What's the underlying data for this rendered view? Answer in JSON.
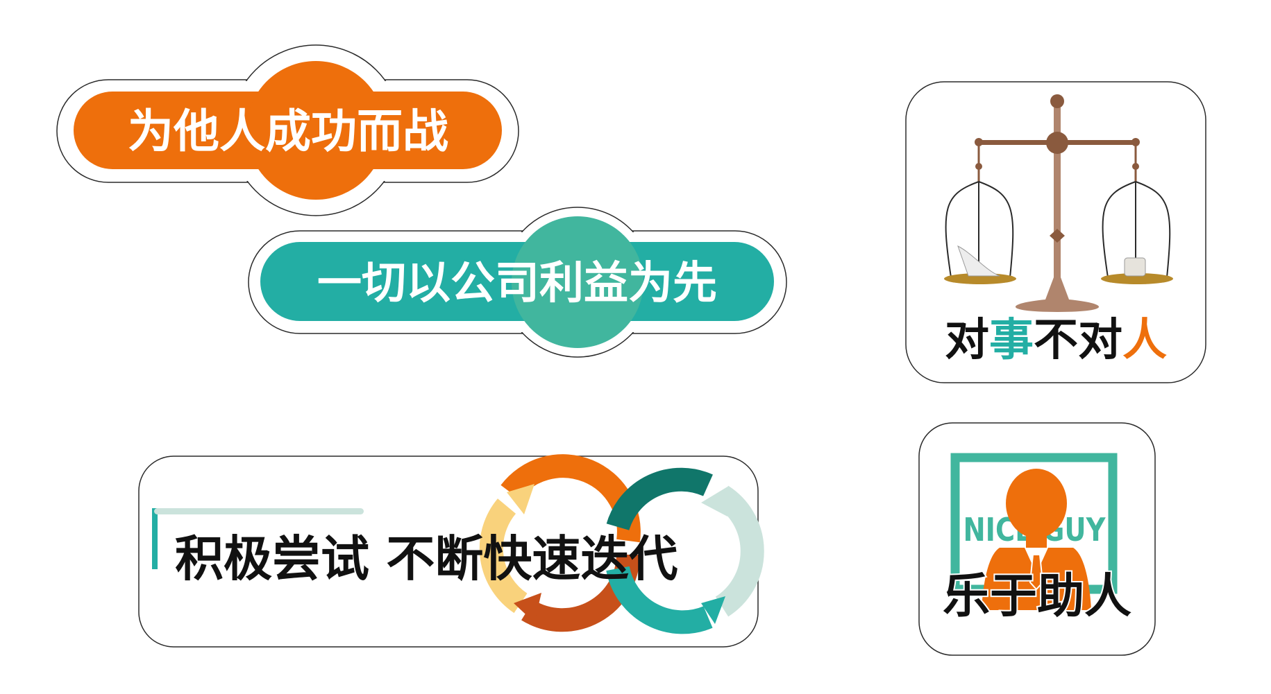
{
  "colors": {
    "orange": "#EE6F0C",
    "teal": "#23AEA4",
    "teal_light": "#41B69E",
    "dark_teal": "#10766A",
    "pale_teal": "#CBE3DC",
    "rust": "#C7501A",
    "yellow": "#F9D27C",
    "brown": "#8A5A3E",
    "scale_wood": "#B0856D",
    "gold": "#B78A2A",
    "outline": "#2a2a2a",
    "text_dark": "#111111",
    "white": "#FFFFFF"
  },
  "badges": {
    "fight_for_others": {
      "text": "为他人成功而战",
      "icon": "pill-badge-icon"
    },
    "company_first": {
      "text": "一切以公司利益为先",
      "icon": "pill-badge-icon"
    },
    "iterate": {
      "text": "积极尝试 不断快速迭代",
      "icon": "infinity-arrows-icon"
    },
    "fair": {
      "parts": [
        "对",
        "事",
        "不对",
        "人"
      ],
      "icon": "balance-scale-icon"
    },
    "helpful": {
      "text": "乐于助人",
      "frame_text": "NICE GUY",
      "icon": "nice-guy-person-icon"
    }
  }
}
